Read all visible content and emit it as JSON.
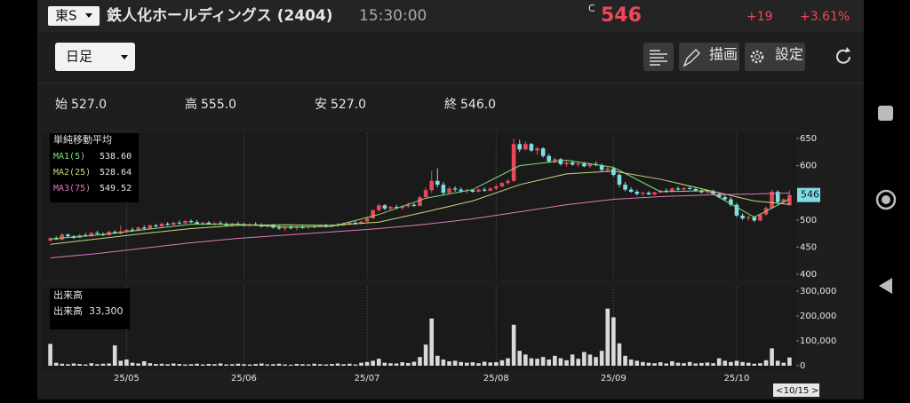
{
  "header": {
    "market": "東S",
    "name": "鉄人化ホールディングス (2404)",
    "time": "15:30:00",
    "price_prefix": "C",
    "price": "546",
    "change": "+19",
    "change_pct": "+3.61%"
  },
  "toolbar": {
    "period": "日足",
    "buttons": [
      "描画",
      "設定"
    ]
  },
  "ohlc_row": [
    {
      "label": "始",
      "value": "527.0"
    },
    {
      "label": "高",
      "value": "555.0"
    },
    {
      "label": "安",
      "value": "527.0"
    },
    {
      "label": "終",
      "value": "546.0"
    }
  ],
  "footer": {
    "date": "10/15"
  },
  "chart_data": [
    {
      "type": "candlestick",
      "legend_title": "単純移動平均",
      "up_color": "#e8485a",
      "down_color": "#7fdde6",
      "price_tag": 546,
      "ylim": [
        390,
        660
      ],
      "yticks": [
        400,
        450,
        500,
        600,
        650
      ],
      "xlim": [
        -1,
        127
      ],
      "ohlc": [
        [
          462,
          468,
          460,
          466
        ],
        [
          466,
          470,
          463,
          464
        ],
        [
          464,
          476,
          462,
          473
        ],
        [
          473,
          475,
          468,
          470
        ],
        [
          470,
          472,
          465,
          467
        ],
        [
          467,
          474,
          466,
          472
        ],
        [
          472,
          476,
          469,
          470
        ],
        [
          470,
          478,
          469,
          476
        ],
        [
          476,
          480,
          472,
          474
        ],
        [
          474,
          477,
          470,
          472
        ],
        [
          472,
          480,
          471,
          478
        ],
        [
          478,
          481,
          474,
          475
        ],
        [
          475,
          490,
          473,
          479
        ],
        [
          479,
          484,
          476,
          482
        ],
        [
          482,
          486,
          478,
          480
        ],
        [
          480,
          488,
          479,
          486
        ],
        [
          486,
          490,
          482,
          484
        ],
        [
          484,
          492,
          483,
          490
        ],
        [
          490,
          493,
          486,
          488
        ],
        [
          488,
          495,
          487,
          493
        ],
        [
          493,
          496,
          489,
          491
        ],
        [
          491,
          497,
          490,
          495
        ],
        [
          495,
          499,
          492,
          494
        ],
        [
          494,
          500,
          493,
          498
        ],
        [
          498,
          501,
          494,
          496
        ],
        [
          496,
          500,
          492,
          493
        ],
        [
          493,
          497,
          490,
          495
        ],
        [
          495,
          498,
          491,
          492
        ],
        [
          492,
          496,
          489,
          494
        ],
        [
          494,
          498,
          491,
          493
        ],
        [
          493,
          496,
          488,
          490
        ],
        [
          490,
          495,
          489,
          493
        ],
        [
          493,
          497,
          490,
          492
        ],
        [
          492,
          495,
          488,
          490
        ],
        [
          490,
          494,
          487,
          492
        ],
        [
          492,
          496,
          489,
          491
        ],
        [
          491,
          494,
          486,
          488
        ],
        [
          488,
          492,
          485,
          490
        ],
        [
          490,
          493,
          484,
          486
        ],
        [
          486,
          490,
          482,
          484
        ],
        [
          484,
          488,
          480,
          486
        ],
        [
          486,
          490,
          483,
          485
        ],
        [
          485,
          489,
          481,
          487
        ],
        [
          487,
          491,
          484,
          486
        ],
        [
          486,
          489,
          483,
          488
        ],
        [
          488,
          491,
          485,
          487
        ],
        [
          487,
          492,
          486,
          490
        ],
        [
          490,
          493,
          486,
          488
        ],
        [
          488,
          492,
          487,
          491
        ],
        [
          491,
          494,
          488,
          490
        ],
        [
          490,
          495,
          489,
          493
        ],
        [
          493,
          497,
          490,
          495
        ],
        [
          495,
          498,
          491,
          493
        ],
        [
          493,
          499,
          492,
          497
        ],
        [
          497,
          505,
          495,
          503
        ],
        [
          503,
          520,
          502,
          518
        ],
        [
          518,
          530,
          515,
          527
        ],
        [
          527,
          529,
          518,
          521
        ],
        [
          521,
          526,
          517,
          524
        ],
        [
          524,
          528,
          520,
          522
        ],
        [
          522,
          527,
          519,
          525
        ],
        [
          525,
          532,
          522,
          528
        ],
        [
          528,
          531,
          524,
          526
        ],
        [
          526,
          545,
          525,
          542
        ],
        [
          542,
          560,
          540,
          555
        ],
        [
          555,
          590,
          550,
          572
        ],
        [
          572,
          595,
          560,
          565
        ],
        [
          565,
          570,
          545,
          550
        ],
        [
          550,
          562,
          548,
          558
        ],
        [
          558,
          562,
          552,
          556
        ],
        [
          556,
          560,
          550,
          553
        ],
        [
          553,
          558,
          549,
          555
        ],
        [
          555,
          557,
          550,
          552
        ],
        [
          552,
          558,
          551,
          556
        ],
        [
          556,
          560,
          552,
          554
        ],
        [
          554,
          560,
          553,
          558
        ],
        [
          558,
          565,
          555,
          562
        ],
        [
          562,
          570,
          560,
          568
        ],
        [
          568,
          575,
          565,
          572
        ],
        [
          572,
          650,
          570,
          640
        ],
        [
          640,
          648,
          625,
          630
        ],
        [
          630,
          645,
          628,
          640
        ],
        [
          640,
          642,
          625,
          628
        ],
        [
          628,
          635,
          620,
          632
        ],
        [
          632,
          634,
          615,
          618
        ],
        [
          618,
          622,
          605,
          608
        ],
        [
          608,
          615,
          604,
          612
        ],
        [
          612,
          614,
          600,
          603
        ],
        [
          603,
          608,
          598,
          606
        ],
        [
          606,
          610,
          600,
          602
        ],
        [
          602,
          606,
          598,
          604
        ],
        [
          604,
          607,
          597,
          599
        ],
        [
          599,
          605,
          596,
          603
        ],
        [
          603,
          608,
          599,
          601
        ],
        [
          601,
          604,
          590,
          592
        ],
        [
          592,
          598,
          588,
          595
        ],
        [
          595,
          598,
          580,
          583
        ],
        [
          583,
          586,
          560,
          565
        ],
        [
          565,
          570,
          553,
          556
        ],
        [
          556,
          560,
          550,
          552
        ],
        [
          552,
          556,
          545,
          548
        ],
        [
          548,
          552,
          544,
          550
        ],
        [
          550,
          553,
          546,
          547
        ],
        [
          547,
          552,
          545,
          551
        ],
        [
          551,
          556,
          549,
          554
        ],
        [
          554,
          558,
          550,
          552
        ],
        [
          552,
          560,
          551,
          558
        ],
        [
          558,
          562,
          554,
          556
        ],
        [
          556,
          560,
          553,
          559
        ],
        [
          559,
          562,
          555,
          557
        ],
        [
          557,
          560,
          552,
          554
        ],
        [
          554,
          557,
          549,
          551
        ],
        [
          551,
          555,
          548,
          553
        ],
        [
          553,
          556,
          546,
          548
        ],
        [
          548,
          551,
          540,
          542
        ],
        [
          542,
          546,
          535,
          538
        ],
        [
          538,
          542,
          525,
          528
        ],
        [
          528,
          531,
          505,
          508
        ],
        [
          508,
          512,
          500,
          503
        ],
        [
          503,
          508,
          498,
          505
        ],
        [
          505,
          507,
          496,
          499
        ],
        [
          499,
          512,
          497,
          510
        ],
        [
          510,
          525,
          508,
          522
        ],
        [
          522,
          556,
          520,
          552
        ],
        [
          552,
          555,
          528,
          533
        ],
        [
          533,
          540,
          530,
          538
        ],
        [
          527,
          555,
          527,
          546
        ]
      ],
      "series": [
        {
          "name": "MA1(5)",
          "color": "#7ee07e",
          "last_label": "538.60",
          "x": [
            0,
            8,
            16,
            24,
            32,
            40,
            48,
            56,
            64,
            72,
            80,
            88,
            96,
            104,
            112,
            120,
            126
          ],
          "values": [
            465,
            472,
            482,
            492,
            492,
            487,
            488,
            510,
            540,
            556,
            600,
            610,
            597,
            552,
            554,
            505,
            538.6
          ]
        },
        {
          "name": "MA2(25)",
          "color": "#c8d77a",
          "last_label": "528.64",
          "x": [
            0,
            8,
            16,
            24,
            32,
            40,
            48,
            56,
            64,
            72,
            80,
            88,
            96,
            104,
            112,
            120,
            126
          ],
          "values": [
            455,
            465,
            475,
            484,
            490,
            491,
            490,
            496,
            515,
            535,
            565,
            585,
            590,
            575,
            555,
            535,
            528.64
          ]
        },
        {
          "name": "MA3(75)",
          "color": "#e07ab8",
          "last_label": "549.52",
          "x": [
            0,
            8,
            16,
            24,
            32,
            40,
            48,
            56,
            64,
            72,
            80,
            88,
            96,
            104,
            112,
            120,
            126
          ],
          "values": [
            430,
            438,
            448,
            458,
            466,
            472,
            478,
            484,
            492,
            502,
            515,
            528,
            538,
            543,
            546,
            548,
            549.52
          ]
        }
      ]
    },
    {
      "type": "bar",
      "legend_title": "出来高",
      "legend_name": "出来高",
      "legend_value": "33,300",
      "color": "#d9d9d9",
      "ylim": [
        0,
        318000
      ],
      "yticks": [
        {
          "value": 0,
          "label": "0"
        },
        {
          "value": 100000,
          "label": "100,000"
        },
        {
          "value": 200000,
          "label": "200,000"
        },
        {
          "value": 300000,
          "label": "300,000"
        }
      ],
      "xlim": [
        -1,
        127
      ],
      "xticks": [
        {
          "value": 13,
          "label": "25/05"
        },
        {
          "value": 33,
          "label": "25/06"
        },
        {
          "value": 54,
          "label": "25/07"
        },
        {
          "value": 76,
          "label": "25/08"
        },
        {
          "value": 96,
          "label": "25/09"
        },
        {
          "value": 117,
          "label": "25/10"
        }
      ],
      "values": [
        88000,
        12000,
        8000,
        6000,
        9000,
        7000,
        5000,
        10000,
        6000,
        8000,
        9000,
        82000,
        20000,
        25000,
        12000,
        9000,
        18000,
        10000,
        7000,
        8000,
        6000,
        9000,
        7000,
        5000,
        6000,
        8000,
        5000,
        7000,
        6000,
        9000,
        5000,
        6000,
        8000,
        6000,
        5000,
        7000,
        9000,
        5000,
        6000,
        8000,
        5000,
        4000,
        7000,
        6000,
        5000,
        8000,
        6000,
        5000,
        7000,
        9000,
        6000,
        8000,
        5000,
        12000,
        15000,
        20000,
        28000,
        12000,
        10000,
        9000,
        14000,
        11000,
        16000,
        35000,
        85000,
        190000,
        40000,
        25000,
        18000,
        20000,
        15000,
        12000,
        14000,
        10000,
        16000,
        13000,
        14000,
        22000,
        30000,
        165000,
        60000,
        45000,
        30000,
        28000,
        35000,
        25000,
        40000,
        30000,
        22000,
        45000,
        28000,
        55000,
        45000,
        35000,
        60000,
        230000,
        195000,
        90000,
        40000,
        25000,
        20000,
        15000,
        12000,
        10000,
        14000,
        9000,
        18000,
        12000,
        10000,
        15000,
        9000,
        11000,
        13000,
        10000,
        30000,
        20000,
        15000,
        20000,
        15000,
        12000,
        8000,
        10000,
        22000,
        70000,
        20000,
        12000,
        33300
      ]
    }
  ]
}
